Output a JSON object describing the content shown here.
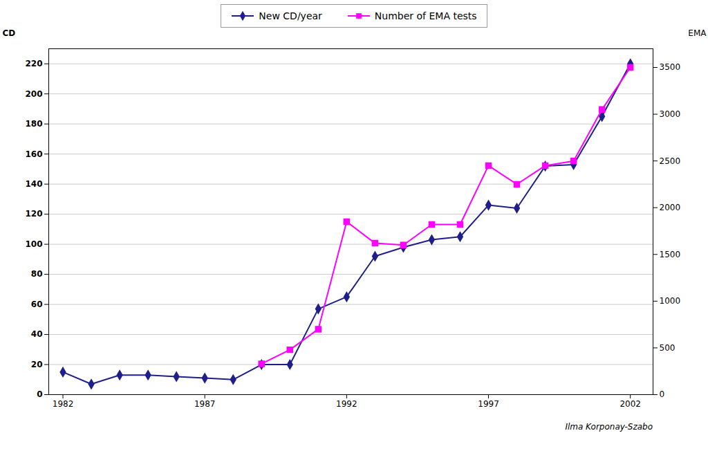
{
  "chart_data": {
    "type": "line",
    "x": [
      1982,
      1983,
      1984,
      1985,
      1986,
      1987,
      1988,
      1989,
      1990,
      1991,
      1992,
      1993,
      1994,
      1995,
      1996,
      1997,
      1998,
      1999,
      2000,
      2001,
      2002
    ],
    "series": [
      {
        "name": "New CD/year",
        "color": "#1f1f8c",
        "marker": "diamond",
        "values": [
          15,
          7,
          13,
          13,
          12,
          11,
          10,
          20,
          20,
          57,
          65,
          92,
          98,
          103,
          105,
          126,
          124,
          152,
          153,
          185,
          220
        ]
      },
      {
        "name": "Number of EMA tests",
        "color": "#ff00ff",
        "marker": "square",
        "axis": "y2",
        "values": [
          null,
          null,
          null,
          null,
          null,
          null,
          null,
          330,
          480,
          700,
          1850,
          1620,
          1600,
          1820,
          1820,
          2450,
          2250,
          2450,
          2500,
          3050,
          3500
        ]
      }
    ],
    "ylabel": "CD",
    "y2label": "EMA",
    "annotation": "Ilma Korponay-Szabo",
    "xlim": [
      1981.5,
      2002.8
    ],
    "xticks": [
      1982,
      1987,
      1992,
      1997,
      2002
    ],
    "ylim": [
      0,
      230
    ],
    "yticks": [
      0,
      20,
      40,
      60,
      80,
      100,
      120,
      140,
      160,
      180,
      200,
      220
    ],
    "y2lim": [
      0,
      3700
    ],
    "y2ticks": [
      0,
      500,
      1000,
      1500,
      2000,
      2500,
      3000,
      3500
    ],
    "grid": true,
    "legend": "top"
  }
}
